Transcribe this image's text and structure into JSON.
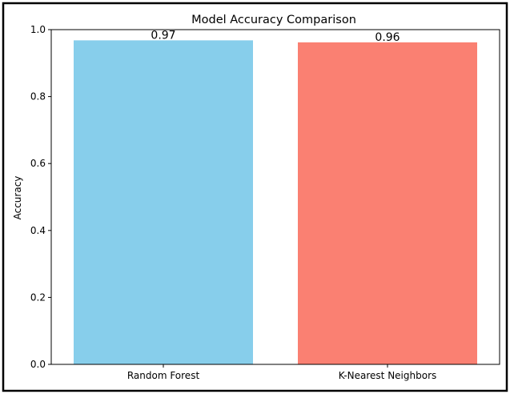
{
  "chart_data": {
    "type": "bar",
    "title": "Model Accuracy Comparison",
    "xlabel": "",
    "ylabel": "Accuracy",
    "categories": [
      "Random Forest",
      "K-Nearest Neighbors"
    ],
    "values": [
      0.968,
      0.962
    ],
    "data_labels": [
      "0.97",
      "0.96"
    ],
    "colors": [
      "#87ceeb",
      "#fa8072"
    ],
    "ylim": [
      0,
      1.0
    ],
    "yticks": [
      0.0,
      0.2,
      0.4,
      0.6,
      0.8,
      1.0
    ],
    "ytick_labels": [
      "0.0",
      "0.2",
      "0.4",
      "0.6",
      "0.8",
      "1.0"
    ],
    "grid": false,
    "legend": "none"
  }
}
